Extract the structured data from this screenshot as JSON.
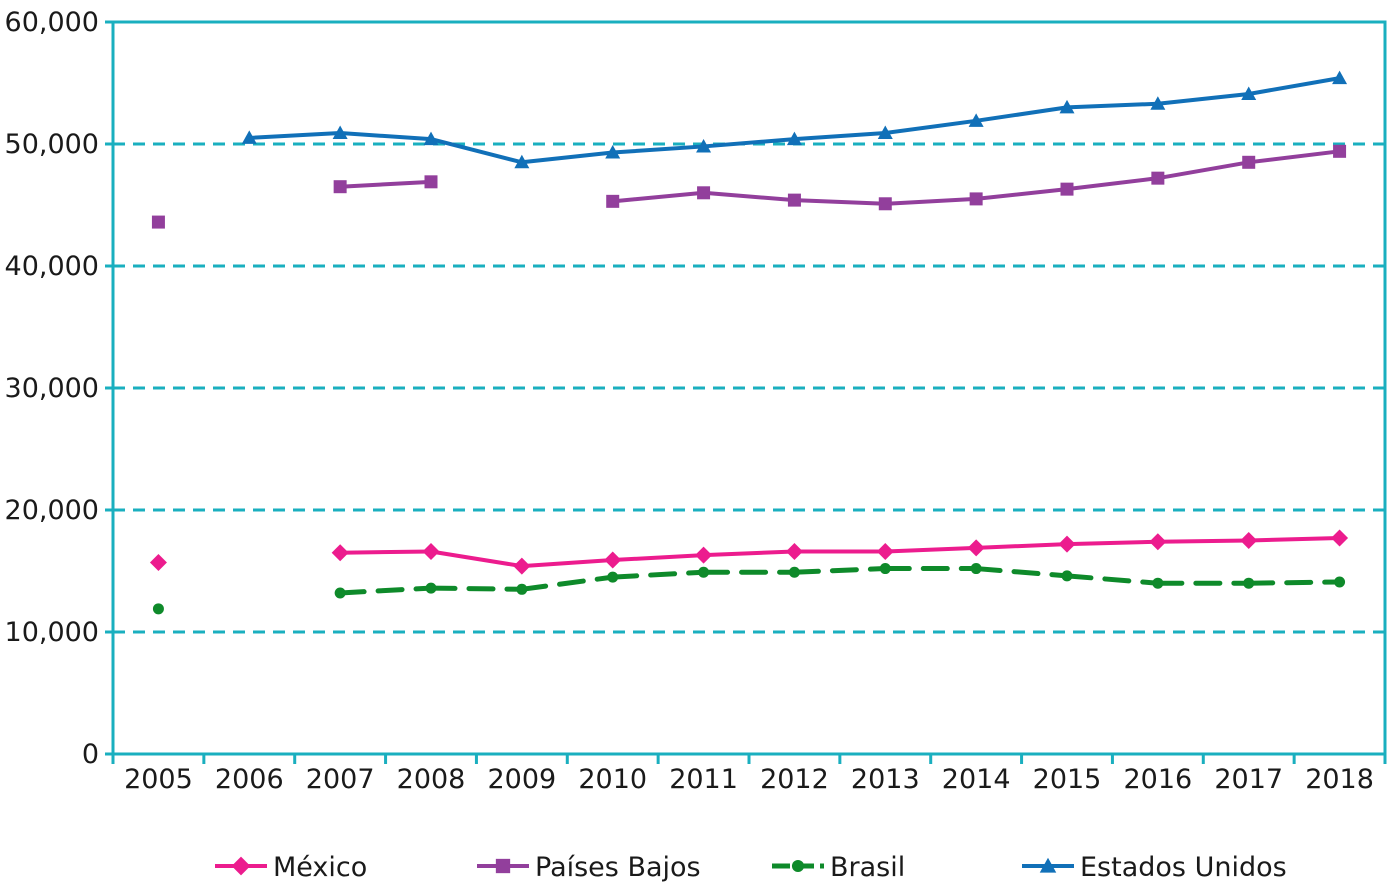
{
  "chart_data": {
    "type": "line",
    "title": "",
    "xlabel": "",
    "ylabel": "",
    "categories": [
      "2005",
      "2006",
      "2007",
      "2008",
      "2009",
      "2010",
      "2011",
      "2012",
      "2013",
      "2014",
      "2015",
      "2016",
      "2017",
      "2018"
    ],
    "ylim": [
      0,
      60000
    ],
    "yticks": [
      0,
      10000,
      20000,
      30000,
      40000,
      50000,
      60000
    ],
    "ytick_labels": [
      "0",
      "10,000",
      "20,000",
      "30,000",
      "40,000",
      "50,000",
      "60,000"
    ],
    "grid": "horizontal dashed",
    "legend_position": "bottom",
    "frame_color": "#1AAFBF",
    "grid_color": "#1AAFBF",
    "series": [
      {
        "name": "México",
        "color": "#EC1C8E",
        "marker": "diamond",
        "dash": "solid",
        "values": [
          15700,
          null,
          16500,
          16600,
          15400,
          15900,
          16300,
          16600,
          16600,
          16900,
          17200,
          17400,
          17500,
          17700
        ]
      },
      {
        "name": "Países Bajos",
        "color": "#923F9C",
        "marker": "square",
        "dash": "solid",
        "values": [
          43600,
          null,
          46500,
          46900,
          null,
          45300,
          46000,
          45400,
          45100,
          45500,
          46300,
          47200,
          48500,
          49400
        ]
      },
      {
        "name": "Brasil",
        "color": "#0E8A2A",
        "marker": "circle",
        "dash": "dashed",
        "values": [
          11900,
          null,
          13200,
          13600,
          13500,
          14500,
          14900,
          14900,
          15200,
          15200,
          14600,
          14000,
          14000,
          14100
        ]
      },
      {
        "name": "Estados Unidos",
        "color": "#1170B8",
        "marker": "triangle",
        "dash": "solid",
        "values": [
          null,
          50500,
          50900,
          50400,
          48500,
          49300,
          49800,
          50400,
          50900,
          51900,
          53000,
          53300,
          54100,
          55400
        ]
      }
    ]
  }
}
